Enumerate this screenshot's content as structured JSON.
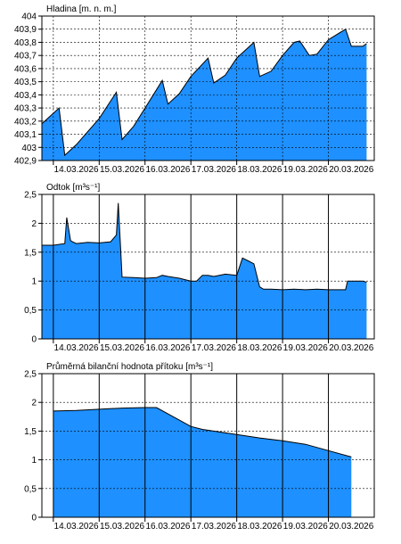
{
  "chart_data": [
    {
      "type": "area",
      "title": "Hladina [m. n. m.]",
      "x_start": "13.03.2026 18:00",
      "x_end": "21.03.2026 00:00",
      "x_tick_labels": [
        "14.03.2026",
        "15.03.2026",
        "16.03.2026",
        "17.03.2026",
        "18.03.2026",
        "19.03.2026",
        "20.03.2026"
      ],
      "ylim": [
        402.9,
        404.0
      ],
      "y_tick_labels": [
        "402,9",
        "403",
        "403,1",
        "403,2",
        "403,3",
        "403,4",
        "403,5",
        "403,6",
        "403,7",
        "403,8",
        "403,9",
        "404"
      ],
      "grid": "vertical dashed at day boundaries, horizontal dashed at y ticks",
      "fill_color": "#1E90FF",
      "series": [
        {
          "x": [
            "13.03.2026 18:00",
            "14.03.2026 03:00",
            "14.03.2026 06:00",
            "14.03.2026 12:00",
            "15.03.2026 00:00",
            "15.03.2026 09:00",
            "15.03.2026 12:00",
            "15.03.2026 18:00",
            "16.03.2026 00:00",
            "16.03.2026 09:00",
            "16.03.2026 12:00",
            "16.03.2026 18:00",
            "17.03.2026 00:00",
            "17.03.2026 09:00",
            "17.03.2026 12:00",
            "17.03.2026 18:00",
            "18.03.2026 00:00",
            "18.03.2026 09:00",
            "18.03.2026 12:00",
            "18.03.2026 18:00",
            "19.03.2026 00:00",
            "19.03.2026 06:00",
            "19.03.2026 09:00",
            "19.03.2026 14:00",
            "19.03.2026 18:00",
            "20.03.2026 00:00",
            "20.03.2026 09:00",
            "20.03.2026 12:00",
            "20.03.2026 18:00",
            "20.03.2026 20:00"
          ],
          "y": [
            403.18,
            403.3,
            402.94,
            403.02,
            403.22,
            403.42,
            403.06,
            403.16,
            403.3,
            403.51,
            403.33,
            403.41,
            403.54,
            403.68,
            403.49,
            403.55,
            403.68,
            403.8,
            403.54,
            403.58,
            403.7,
            403.8,
            403.81,
            403.7,
            403.71,
            403.82,
            403.9,
            403.77,
            403.77,
            403.79
          ]
        }
      ]
    },
    {
      "type": "area",
      "title": "Odtok [m³s⁻¹]",
      "x_start": "13.03.2026 18:00",
      "x_end": "21.03.2026 00:00",
      "x_tick_labels": [
        "14.03.2026",
        "15.03.2026",
        "16.03.2026",
        "17.03.2026",
        "18.03.2026",
        "19.03.2026",
        "20.03.2026"
      ],
      "ylim": [
        0,
        2.5
      ],
      "y_tick_labels": [
        "0",
        "0,5",
        "1",
        "1,5",
        "2",
        "2,5"
      ],
      "grid": "vertical solid at day boundaries, horizontal dashed at y ticks",
      "fill_color": "#1E90FF",
      "series": [
        {
          "x": [
            "13.03.2026 18:00",
            "14.03.2026 00:00",
            "14.03.2026 06:00",
            "14.03.2026 07:00",
            "14.03.2026 09:00",
            "14.03.2026 10:00",
            "14.03.2026 12:00",
            "14.03.2026 18:00",
            "15.03.2026 00:00",
            "15.03.2026 06:00",
            "15.03.2026 09:00",
            "15.03.2026 10:00",
            "15.03.2026 11:00",
            "15.03.2026 12:00",
            "15.03.2026 18:00",
            "16.03.2026 00:00",
            "16.03.2026 06:00",
            "16.03.2026 09:00",
            "16.03.2026 12:00",
            "16.03.2026 18:00",
            "17.03.2026 00:00",
            "17.03.2026 03:00",
            "17.03.2026 06:00",
            "17.03.2026 09:00",
            "17.03.2026 12:00",
            "17.03.2026 18:00",
            "18.03.2026 00:00",
            "18.03.2026 03:00",
            "18.03.2026 06:00",
            "18.03.2026 09:00",
            "18.03.2026 12:00",
            "18.03.2026 14:00",
            "18.03.2026 18:00",
            "19.03.2026 00:00",
            "19.03.2026 06:00",
            "19.03.2026 12:00",
            "19.03.2026 18:00",
            "20.03.2026 00:00",
            "20.03.2026 09:00",
            "20.03.2026 10:00",
            "20.03.2026 18:00",
            "20.03.2026 20:00"
          ],
          "y": [
            1.62,
            1.62,
            1.65,
            2.1,
            1.7,
            1.68,
            1.65,
            1.67,
            1.66,
            1.68,
            1.8,
            2.35,
            1.7,
            1.07,
            1.06,
            1.05,
            1.06,
            1.1,
            1.08,
            1.05,
            1.0,
            1.0,
            1.1,
            1.1,
            1.08,
            1.12,
            1.1,
            1.4,
            1.35,
            1.3,
            0.9,
            0.86,
            0.86,
            0.85,
            0.86,
            0.85,
            0.86,
            0.85,
            0.85,
            1.0,
            1.0,
            0.98
          ]
        }
      ]
    },
    {
      "type": "area",
      "title": "Průměrná bilanční hodnota přítoku [m³s⁻¹]",
      "x_start": "13.03.2026 18:00",
      "x_end": "21.03.2026 00:00",
      "x_tick_labels": [
        "14.03.2026",
        "15.03.2026",
        "16.03.2026",
        "17.03.2026",
        "18.03.2026",
        "19.03.2026",
        "20.03.2026"
      ],
      "ylim": [
        0,
        2.5
      ],
      "y_tick_labels": [
        "0",
        "0,5",
        "1",
        "1,5",
        "2",
        "2,5"
      ],
      "grid": "vertical solid at day boundaries, horizontal dashed at y ticks",
      "fill_color": "#1E90FF",
      "series": [
        {
          "x": [
            "14.03.2026 00:00",
            "14.03.2026 12:00",
            "15.03.2026 00:00",
            "15.03.2026 12:00",
            "16.03.2026 00:00",
            "16.03.2026 06:00",
            "16.03.2026 12:00",
            "17.03.2026 00:00",
            "17.03.2026 06:00",
            "17.03.2026 12:00",
            "18.03.2026 00:00",
            "18.03.2026 12:00",
            "19.03.2026 00:00",
            "19.03.2026 12:00",
            "20.03.2026 00:00",
            "20.03.2026 12:00"
          ],
          "y": [
            1.85,
            1.86,
            1.88,
            1.9,
            1.91,
            1.91,
            1.8,
            1.58,
            1.53,
            1.5,
            1.44,
            1.38,
            1.33,
            1.27,
            1.16,
            1.05
          ]
        }
      ]
    }
  ]
}
